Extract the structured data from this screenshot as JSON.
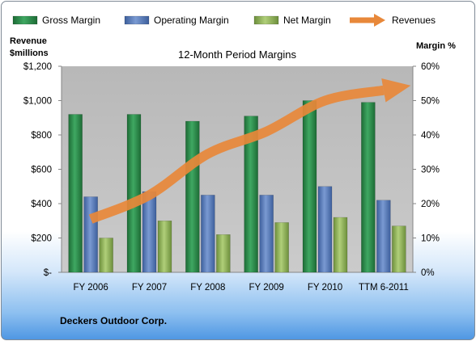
{
  "chart_data": {
    "type": "bar",
    "title": "12-Month Period Margins",
    "categories": [
      "FY 2006",
      "FY 2007",
      "FY 2008",
      "FY 2009",
      "FY 2010",
      "TTM 6-2011"
    ],
    "series": [
      {
        "name": "Gross Margin",
        "axis": "right",
        "unit": "%",
        "color": "#2e8b4a",
        "values": [
          46,
          46,
          44,
          45.5,
          50,
          49.5
        ]
      },
      {
        "name": "Operating Margin",
        "axis": "right",
        "unit": "%",
        "color": "#5b7fbd",
        "values": [
          22,
          23.5,
          22.5,
          22.5,
          25,
          21
        ]
      },
      {
        "name": "Net Margin",
        "axis": "right",
        "unit": "%",
        "color": "#8fb35a",
        "values": [
          10,
          15,
          11,
          14.5,
          16,
          13.5
        ]
      },
      {
        "name": "Revenues",
        "axis": "left",
        "type": "line",
        "color": "#e8883a",
        "values": [
          310,
          450,
          690,
          820,
          1000,
          1060
        ]
      }
    ],
    "left_axis": {
      "label_line1": "Revenue",
      "label_line2": "$millions",
      "ylim": [
        0,
        1200
      ],
      "tick_values": [
        0,
        200,
        400,
        600,
        800,
        1000,
        1200
      ],
      "tick_labels": [
        "$-",
        "$200",
        "$400",
        "$600",
        "$800",
        "$1,000",
        "$1,200"
      ]
    },
    "right_axis": {
      "label": "Margin %",
      "ylim": [
        0,
        60
      ],
      "tick_values": [
        0,
        10,
        20,
        30,
        40,
        50,
        60
      ],
      "tick_labels": [
        "0%",
        "10%",
        "20%",
        "30%",
        "40%",
        "50%",
        "60%"
      ]
    },
    "legend_position": "top",
    "grid": false,
    "plot_background": "#c0c0c0"
  },
  "footer": {
    "company": "Deckers Outdoor Corp."
  }
}
